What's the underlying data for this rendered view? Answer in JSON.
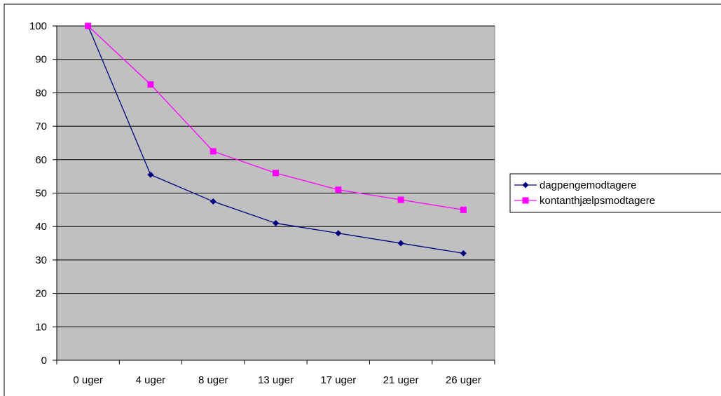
{
  "chart_data": {
    "type": "line",
    "title": "",
    "xlabel": "",
    "ylabel": "",
    "categories": [
      "0 uger",
      "4 uger",
      "8 uger",
      "13 uger",
      "17 uger",
      "21 uger",
      "26 uger"
    ],
    "ylim": [
      0,
      100
    ],
    "yticks": [
      0,
      10,
      20,
      30,
      40,
      50,
      60,
      70,
      80,
      90,
      100
    ],
    "grid": true,
    "plot_background": "#c0c0c0",
    "legend_position": "right",
    "series": [
      {
        "name": "dagpengemodtagere",
        "color": "#000080",
        "marker": "diamond",
        "values": [
          100,
          55.5,
          47.5,
          41,
          38,
          35,
          32
        ]
      },
      {
        "name": "kontanthjælpsmodtagere",
        "color": "#ff00ff",
        "marker": "square",
        "values": [
          100,
          82.5,
          62.5,
          56,
          51,
          48,
          45
        ]
      }
    ]
  }
}
